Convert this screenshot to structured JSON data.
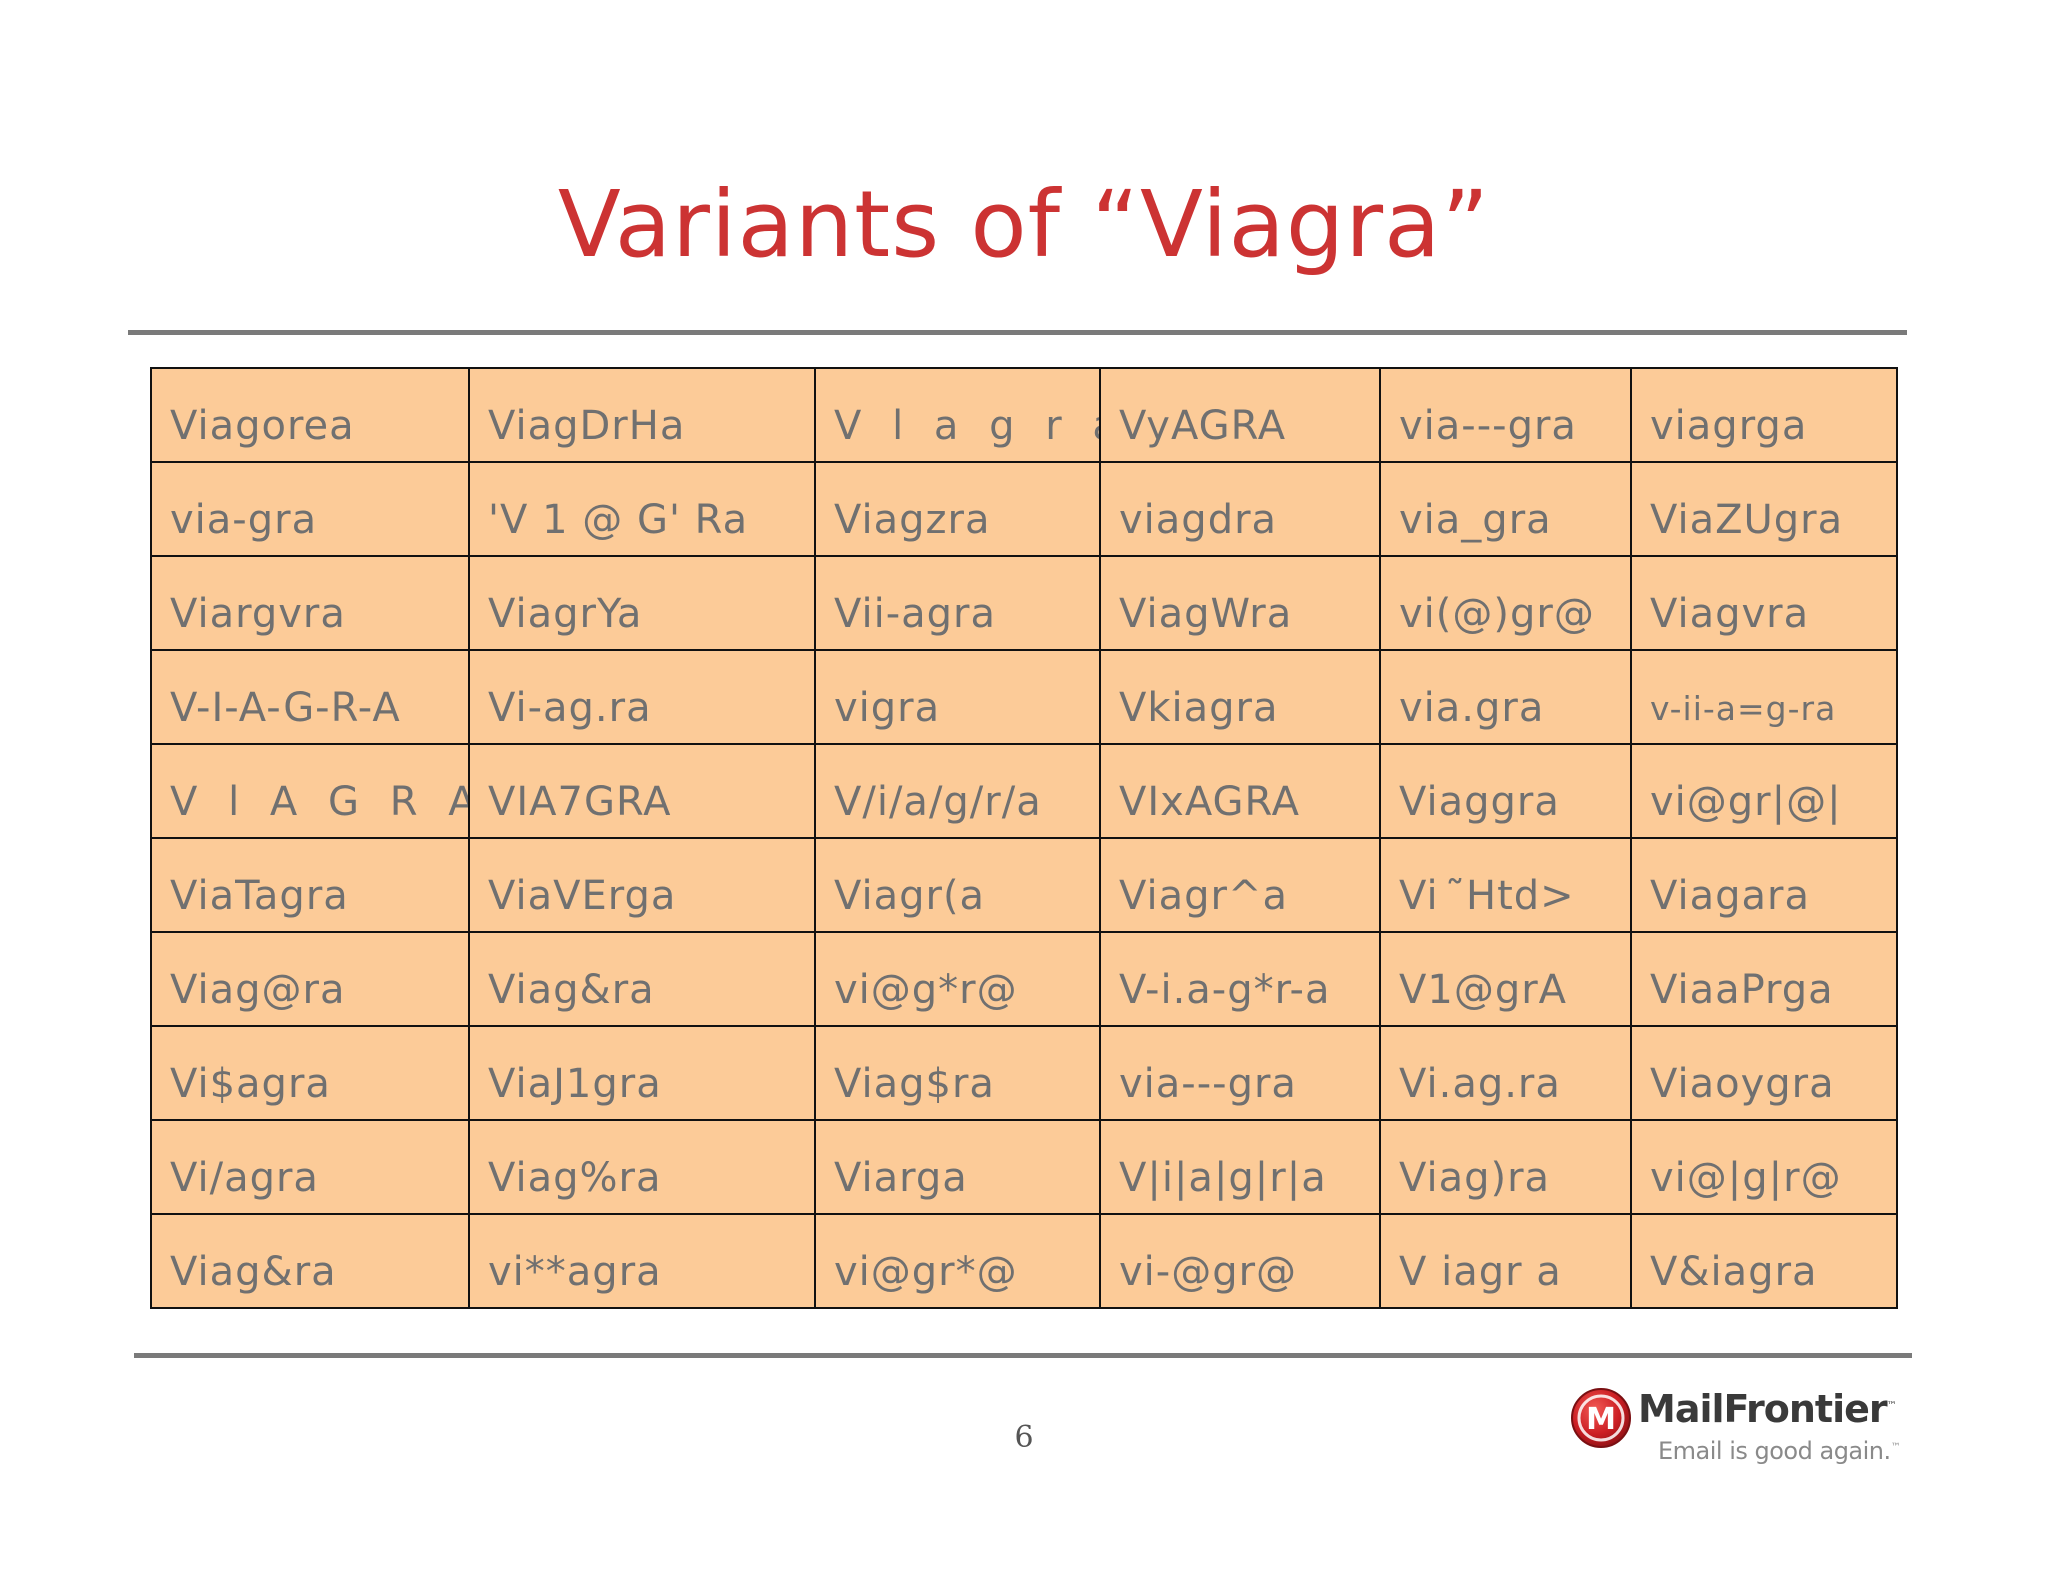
{
  "slide": {
    "title": "Variants of “Viagra”",
    "page_number": "6"
  },
  "colors": {
    "title": "#cc3333",
    "cell_background": "#fccb98",
    "cell_text": "#707070",
    "cell_border": "#111111",
    "rule": "#7a7a7a",
    "logo_red": "#cc1f24"
  },
  "table": {
    "rows": [
      [
        "Viagorea",
        "ViagDrHa",
        "V l a g r a",
        "VyAGRA",
        "via---gra",
        "viagrga"
      ],
      [
        "via-gra",
        "'V 1 @ G' Ra",
        "Viagzra",
        "viagdra",
        "via_gra",
        "ViaZUgra"
      ],
      [
        "Viargvra",
        "ViagrYa",
        "Vii-agra",
        "ViagWra",
        "vi(@)gr@",
        "Viagvra"
      ],
      [
        "V-I-A-G-R-A",
        "Vi-ag.ra",
        "vigra",
        "Vkiagra",
        "via.gra",
        "v-ii-a=g-ra"
      ],
      [
        "V l A G R A",
        "VIA7GRA",
        "V/i/a/g/r/a",
        "VIxAGRA",
        "Viaggra",
        "vi@gr|@|"
      ],
      [
        "ViaTagra",
        "ViaVErga",
        "Viagr(a",
        "Viagr^a",
        "Vi  ̃Htd>",
        "Viagara"
      ],
      [
        "Viag@ra",
        "Viag&ra",
        "vi@g*r@",
        "V-i.a-g*r-a",
        "V1@grA",
        "ViaaPrga"
      ],
      [
        "Vi$agra",
        "ViaJ1gra",
        "Viag$ra",
        "via---gra",
        "Vi.ag.ra",
        "Viaoygra"
      ],
      [
        "Vi/agra",
        "Viag%ra",
        "Viarga",
        "V|i|a|g|r|a",
        "Viag)ra",
        "vi@|g|r@"
      ],
      [
        "Viag&ra",
        "vi**agra",
        "vi@gr*@",
        "vi-@gr@",
        "V iagr a",
        "V&iagra"
      ]
    ]
  },
  "logo": {
    "icon": "mailfrontier-m-logo-icon",
    "letter": "M",
    "name": "MailFrontier",
    "trademark": "™",
    "tagline": "Email is good again.",
    "tagline_trademark": "™"
  }
}
